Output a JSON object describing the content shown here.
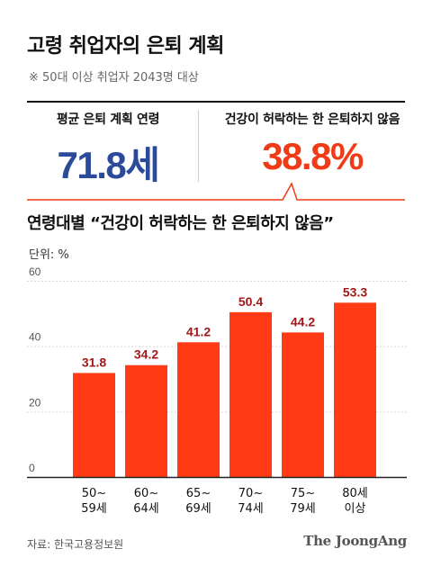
{
  "title": "고령 취업자의 은퇴 계획",
  "note": "※ 50대 이상 취업자 2043명 대상",
  "stats": {
    "left_label": "평균 은퇴 계획 연령",
    "left_value": "71.8세",
    "right_label": "건강이 허락하는 한 은퇴하지 않음",
    "right_value": "38.8%"
  },
  "colors": {
    "accent_blue": "#2c4a9a",
    "accent_red": "#ef3b16",
    "label_dark_red": "#a01818"
  },
  "unit_label": "단위: %",
  "source": "자료: 한국고용정보원",
  "brand": "The JoongAng",
  "chart_data": {
    "type": "bar",
    "title": "연령대별 “건강이 허락하는 한 은퇴하지 않음”",
    "xlabel": "",
    "ylabel": "",
    "ylim": [
      0,
      60
    ],
    "yticks": [
      0,
      20,
      40,
      60
    ],
    "grid": true,
    "categories": [
      [
        "50~",
        "59세"
      ],
      [
        "60~",
        "64세"
      ],
      [
        "65~",
        "69세"
      ],
      [
        "70~",
        "74세"
      ],
      [
        "75~",
        "79세"
      ],
      [
        "80세",
        "이상"
      ]
    ],
    "values": [
      31.8,
      34.2,
      41.2,
      50.4,
      44.2,
      53.3
    ],
    "data_labels": [
      "31.8",
      "34.2",
      "41.2",
      "50.4",
      "44.2",
      "53.3"
    ],
    "bar_color": "#ff3a14"
  }
}
